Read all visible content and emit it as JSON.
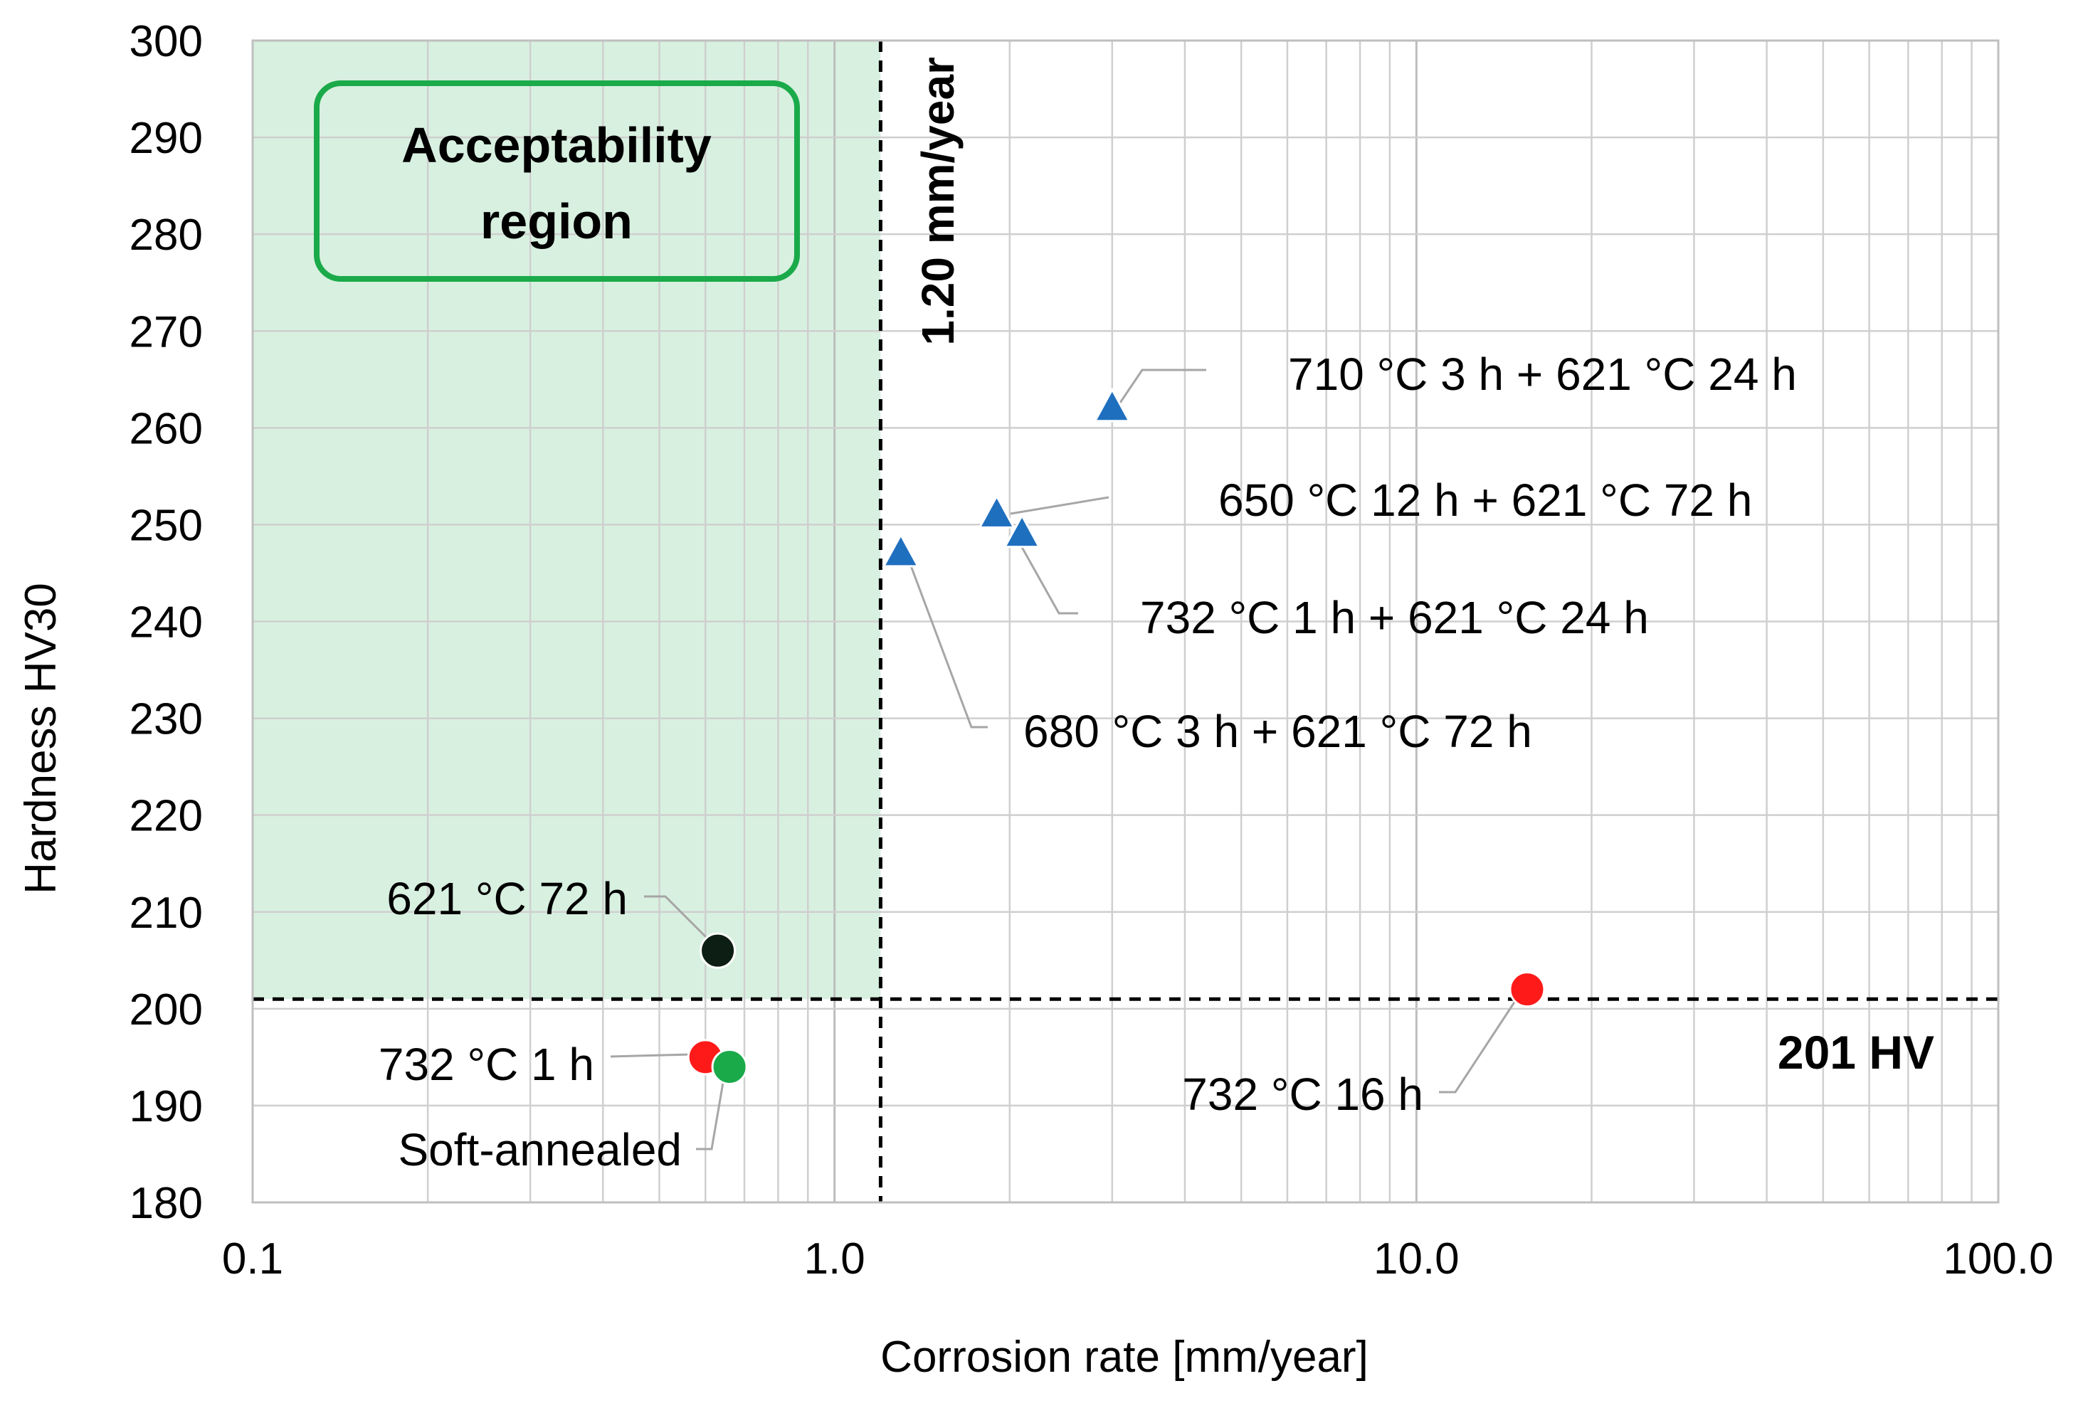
{
  "chart_data": {
    "type": "scatter",
    "title": "",
    "xlabel": "Corrosion rate [mm/year]",
    "ylabel": "Hardness HV30",
    "xscale": "log",
    "xlim": [
      0.1,
      100
    ],
    "ylim": [
      180,
      300
    ],
    "x_ticks": [
      0.1,
      1,
      10,
      100
    ],
    "x_tick_labels": [
      "0.1",
      "1.0",
      "10.0",
      "100.0"
    ],
    "y_ticks": [
      180,
      190,
      200,
      210,
      220,
      230,
      240,
      250,
      260,
      270,
      280,
      290,
      300
    ],
    "y_tick_labels": [
      "180",
      "190",
      "200",
      "210",
      "220",
      "230",
      "240",
      "250",
      "260",
      "270",
      "280",
      "290",
      "300"
    ],
    "grid": true,
    "legend": "none",
    "colors": {
      "blue": "#1f6fbf",
      "black": "#0d1f14",
      "red": "#ff1a1a",
      "green": "#1aaa4a",
      "region_fill": "#d8f0e0",
      "region_border": "#1aaa4a"
    },
    "threshold_x": {
      "value": 1.2,
      "label": "1.20 mm/year"
    },
    "threshold_y": {
      "value": 201,
      "label": "201 HV"
    },
    "region": {
      "label_line1": "Acceptability",
      "label_line2": "region"
    },
    "series": [
      {
        "marker": "triangle",
        "color": "#1f6fbf",
        "points": [
          {
            "x": 3.0,
            "y": 262,
            "label": "710 °C 3 h + 621 °C 24 h"
          },
          {
            "x": 1.9,
            "y": 251,
            "label": "650 °C 12 h + 621 °C 72 h"
          },
          {
            "x": 2.1,
            "y": 249,
            "label": "732 °C 1 h + 621 °C 24 h"
          },
          {
            "x": 1.3,
            "y": 247,
            "label": "680 °C 3 h + 621 °C 72 h"
          }
        ]
      },
      {
        "marker": "circle",
        "color": "#0d1f14",
        "points": [
          {
            "x": 0.63,
            "y": 206,
            "label": "621 °C 72 h"
          }
        ]
      },
      {
        "marker": "circle",
        "color": "#ff1a1a",
        "points": [
          {
            "x": 0.6,
            "y": 195,
            "label": "732 °C 1 h"
          },
          {
            "x": 15.5,
            "y": 202,
            "label": "732 °C 16 h"
          }
        ]
      },
      {
        "marker": "circle",
        "color": "#1aaa4a",
        "points": [
          {
            "x": 0.66,
            "y": 194,
            "label": "Soft-annealed"
          }
        ]
      }
    ]
  }
}
